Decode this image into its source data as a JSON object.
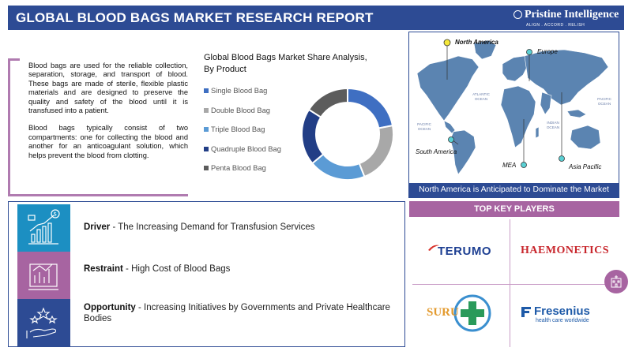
{
  "header": {
    "title": "GLOBAL BLOOD BAGS MARKET RESEARCH REPORT",
    "brand_name": "Pristine Intelligence",
    "brand_tagline": "ALIGN . ACCORD . RELISH"
  },
  "description": {
    "paragraph1": "Blood bags are used for the reliable collection, separation, storage, and transport of blood. These bags are made of sterile, flexible plastic materials and are designed to preserve the quality and safety of the blood until it is transfused into a patient.",
    "paragraph2": "Blood bags typically consist of two compartments: one for collecting the blood and another for an anticoagulant solution, which helps prevent the blood from clotting."
  },
  "chart_data": {
    "type": "pie",
    "title": "Global Blood Bags Market Share Analysis, By Product",
    "categories": [
      "Single Blood Bag",
      "Double Blood Bag",
      "Triple Blood Bag",
      "Quadruple Blood Bag",
      "Penta Blood Bag"
    ],
    "values": [
      22,
      22,
      20,
      20,
      16
    ],
    "colors": [
      "#3f6fc2",
      "#a8a8a8",
      "#5b9bd5",
      "#223e86",
      "#5c5c5c"
    ],
    "donut": true,
    "legend": "left"
  },
  "map": {
    "regions": [
      {
        "name": "North America",
        "bold": true
      },
      {
        "name": "Europe",
        "bold": false
      },
      {
        "name": "South America",
        "bold": false
      },
      {
        "name": "MEA",
        "bold": false
      },
      {
        "name": "Asia Pacific",
        "bold": false
      }
    ],
    "oceans": {
      "atlantic": "ATLANTIC OCEAN",
      "pacific_left": "PACIFIC OCEAN",
      "pacific_right": "PACIFIC OCEAN",
      "indian": "INDIAN OCEAN"
    },
    "banner": "North America is Anticipated to Dominate the Market"
  },
  "dro": [
    {
      "label": "Driver",
      "text": " - The Increasing Demand for Transfusion Services",
      "color": "#1c8fc2"
    },
    {
      "label": "Restraint",
      "text": " - High Cost of Blood Bags",
      "color": "#a764a1"
    },
    {
      "label": "Opportunity",
      "text": " - Increasing Initiatives by Governments and Private Healthcare Bodies",
      "color": "#2d4b94"
    }
  ],
  "key_players": {
    "title": "TOP KEY PLAYERS",
    "companies": [
      "TERUMO",
      "HAEMONETICS",
      "SURU",
      "Fresenius"
    ],
    "fresenius_tagline": "health care worldwide"
  }
}
